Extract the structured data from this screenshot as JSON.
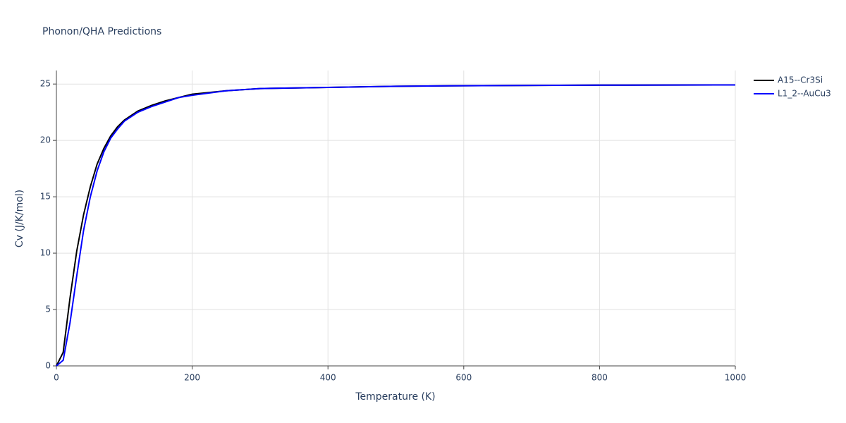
{
  "chart_data": {
    "type": "line",
    "title": "Phonon/QHA Predictions",
    "x_label": "Temperature (K)",
    "y_label": "Cv (J/K/mol)",
    "x": [
      0,
      10,
      20,
      30,
      40,
      50,
      60,
      70,
      80,
      90,
      100,
      120,
      140,
      160,
      180,
      200,
      250,
      300,
      400,
      500,
      600,
      800,
      1000
    ],
    "series": [
      {
        "name": "A15--Cr3Si",
        "color": "#000000",
        "values": [
          0,
          1.2,
          6.0,
          10.2,
          13.4,
          15.9,
          17.9,
          19.3,
          20.4,
          21.2,
          21.8,
          22.6,
          23.1,
          23.5,
          23.8,
          24.1,
          24.4,
          24.6,
          24.7,
          24.8,
          24.85,
          24.9,
          24.92
        ]
      },
      {
        "name": "L1_2--AuCu3",
        "color": "#0000ff",
        "values": [
          0,
          0.5,
          3.8,
          8.0,
          12.0,
          15.0,
          17.3,
          19.0,
          20.2,
          21.0,
          21.7,
          22.5,
          23.0,
          23.4,
          23.8,
          24.0,
          24.4,
          24.6,
          24.7,
          24.8,
          24.85,
          24.9,
          24.92
        ]
      }
    ],
    "xlim": [
      0,
      1000
    ],
    "xticks": [
      0,
      200,
      400,
      600,
      800,
      1000
    ],
    "ylim": [
      0,
      26.2
    ],
    "yticks": [
      0,
      5,
      10,
      15,
      20,
      25
    ],
    "grid": true,
    "legend": "outside-right-top"
  }
}
